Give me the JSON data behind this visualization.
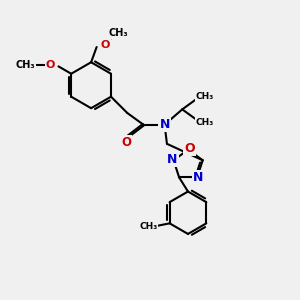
{
  "bg_color": "#f0f0f0",
  "bond_color": "#000000",
  "bond_width": 1.5,
  "atom_colors": {
    "N": "#0000cc",
    "O": "#cc0000",
    "C": "#000000"
  },
  "font_size": 8.0,
  "fig_width": 3.0,
  "fig_height": 3.0,
  "xlim": [
    0,
    10
  ],
  "ylim": [
    0,
    10
  ]
}
